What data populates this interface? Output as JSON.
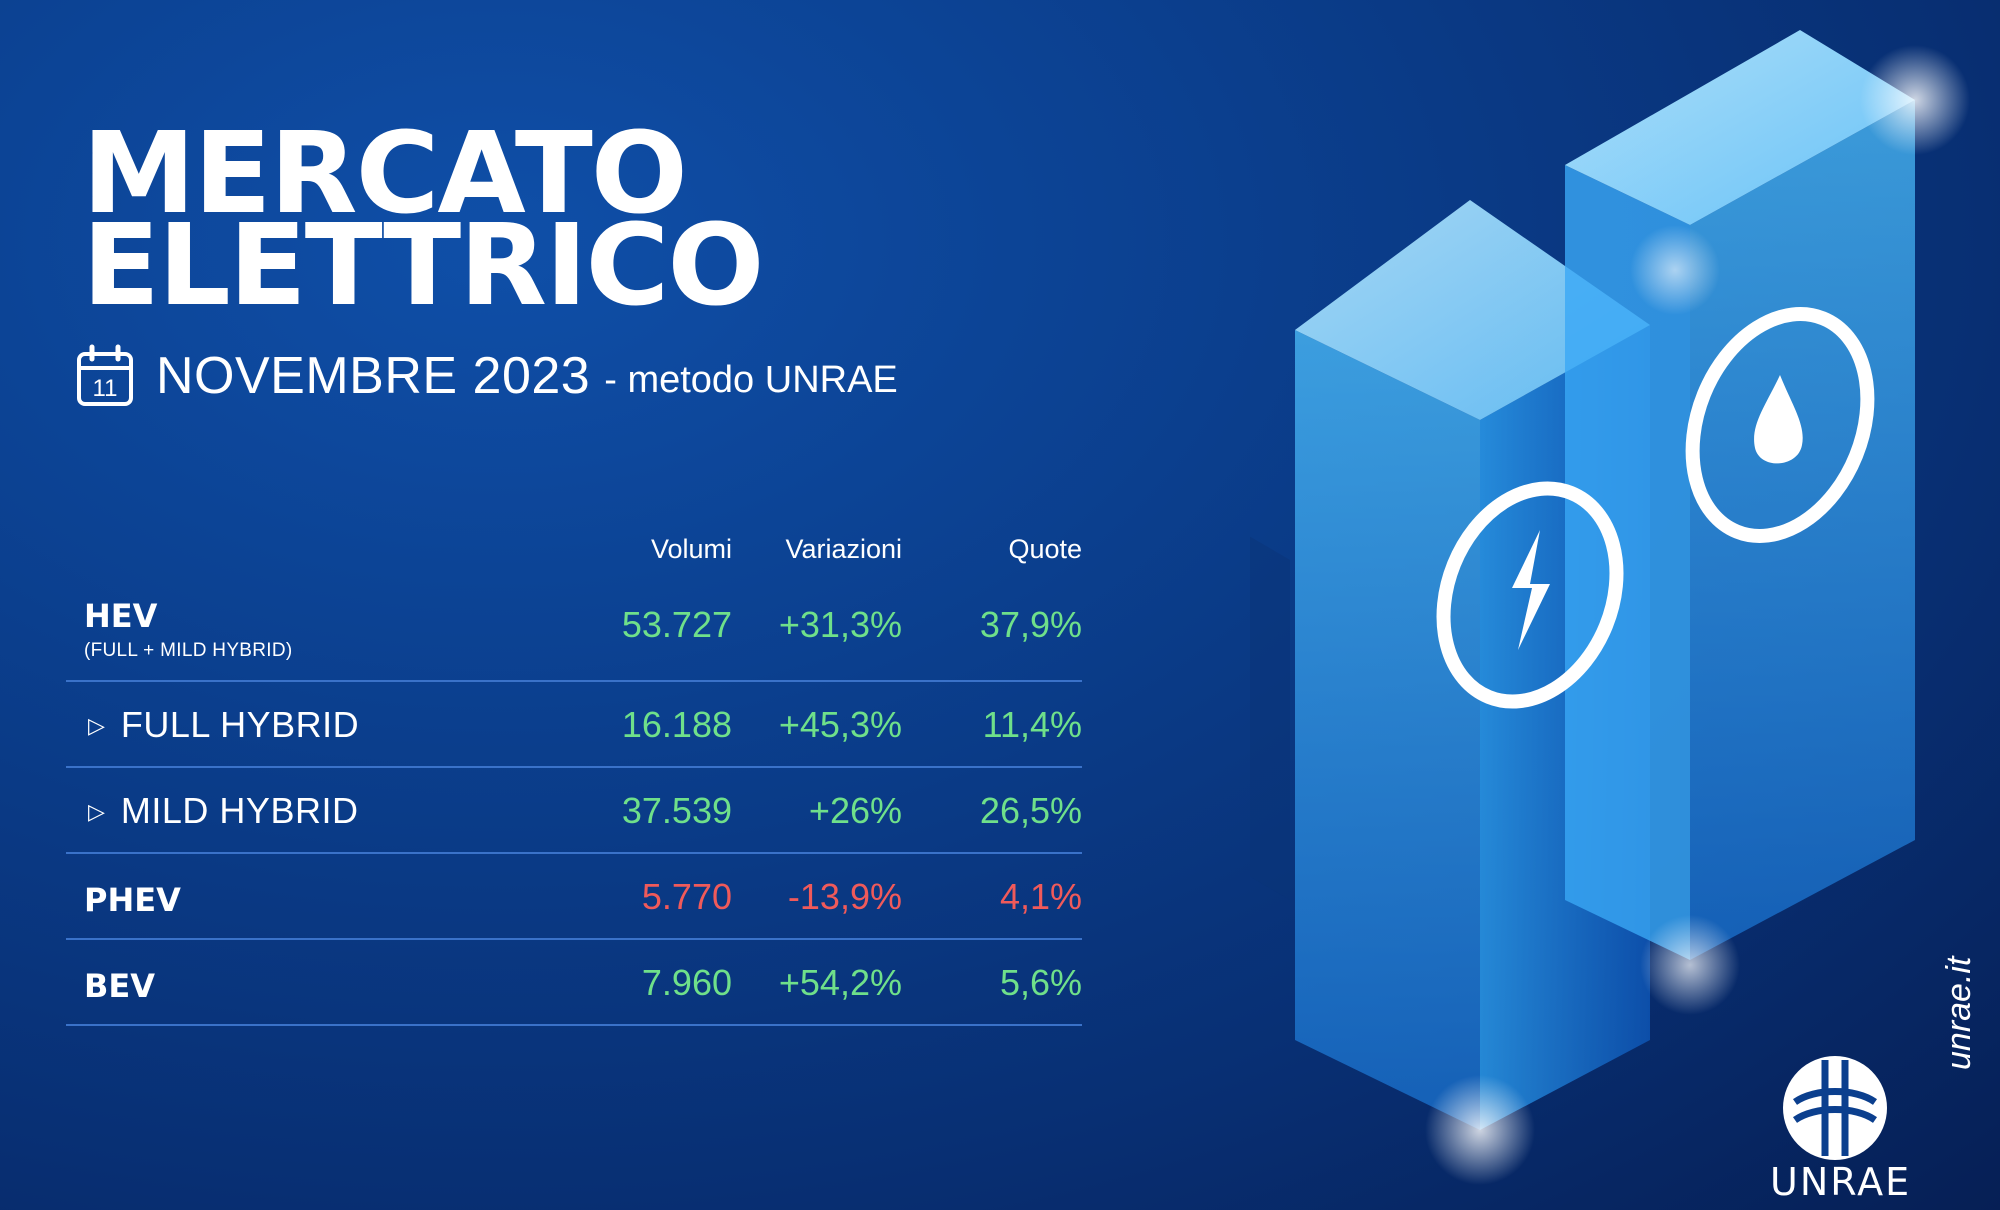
{
  "title": {
    "line1": "MERCATO",
    "line2": "ELETTRICO"
  },
  "period": {
    "calendar_day": "11",
    "main": "NOVEMBRE 2023",
    "suffix": "- metodo UNRAE"
  },
  "table": {
    "headers": {
      "volumi": "Volumi",
      "variazioni": "Variazioni",
      "quote": "Quote"
    },
    "rows": [
      {
        "label": "HEV",
        "sublabel": "(FULL + MILD HYBRID)",
        "volumi": "53.727",
        "variazioni": "+31,3%",
        "quote": "37,9%",
        "status": "positive"
      },
      {
        "label": "FULL HYBRID",
        "volumi": "16.188",
        "variazioni": "+45,3%",
        "quote": "11,4%",
        "status": "positive"
      },
      {
        "label": "MILD HYBRID",
        "volumi": "37.539",
        "variazioni": "+26%",
        "quote": "26,5%",
        "status": "positive"
      },
      {
        "label": "PHEV",
        "volumi": "5.770",
        "variazioni": "-13,9%",
        "quote": "4,1%",
        "status": "negative"
      },
      {
        "label": "BEV",
        "volumi": "7.960",
        "variazioni": "+54,2%",
        "quote": "5,6%",
        "status": "positive"
      }
    ]
  },
  "brand": {
    "logo_text": "UNRAE",
    "url": "unrae.it"
  },
  "colors": {
    "positive": "#6fe08a",
    "negative": "#f05a5a",
    "background": "#0b3f8e",
    "divider": "#3a72c9"
  },
  "icons": [
    "calendar-icon",
    "triangle-right-icon",
    "lightning-icon",
    "fuel-drop-icon",
    "unrae-logo"
  ]
}
